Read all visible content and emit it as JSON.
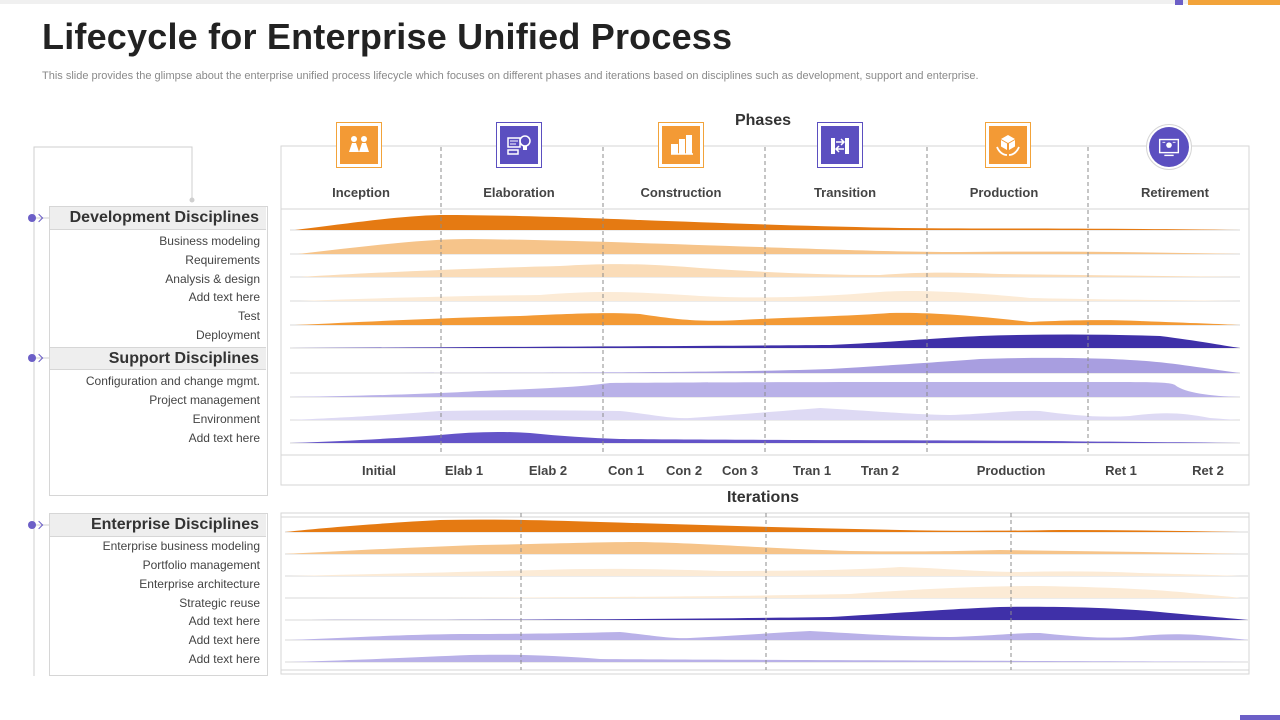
{
  "title": "Lifecycle for Enterprise Unified Process",
  "subtitle": "This slide provides the glimpse about the enterprise unified process lifecycle which focuses on different phases and iterations based on disciplines such as development, support and enterprise.",
  "phases_heading": "Phases",
  "iterations_heading": "Iterations",
  "phases": [
    {
      "label": "Inception",
      "icon": "team-icon"
    },
    {
      "label": "Elaboration",
      "icon": "idea-bulb-icon"
    },
    {
      "label": "Construction",
      "icon": "buildings-icon"
    },
    {
      "label": "Transition",
      "icon": "transfer-arrows-icon"
    },
    {
      "label": "Production",
      "icon": "box-hands-icon"
    },
    {
      "label": "Retirement",
      "icon": "certificate-icon"
    }
  ],
  "iterations": [
    "Initial",
    "Elab 1",
    "Elab 2",
    "Con 1",
    "Con 2",
    "Con 3",
    "Tran 1",
    "Tran 2",
    "Production",
    "Ret 1",
    "Ret 2"
  ],
  "development": {
    "header": "Development Disciplines",
    "items": [
      "Business modeling",
      "Requirements",
      "Analysis & design",
      "Add text here",
      "Test",
      "Deployment"
    ]
  },
  "support": {
    "header": "Support Disciplines",
    "items": [
      "Configuration and change mgmt.",
      "Project management",
      "Environment",
      "Add text here"
    ]
  },
  "enterprise": {
    "header": "Enterprise Disciplines",
    "items": [
      "Enterprise business modeling",
      "Portfolio management",
      "Enterprise architecture",
      "Strategic reuse",
      "Add text here",
      "Add text here",
      "Add text here"
    ]
  },
  "colors": {
    "orange_dark": "#e57a12",
    "orange_mid": "#f6c48a",
    "orange_light": "#fadcb8",
    "orange_pale": "#fcebd6",
    "orange": "#f39a35",
    "purple_dark": "#3f30a8",
    "purple_mid": "#a89ee0",
    "purple_light": "#b9b1e8",
    "purple_pale": "#dedaf4",
    "purple": "#6454c8"
  }
}
